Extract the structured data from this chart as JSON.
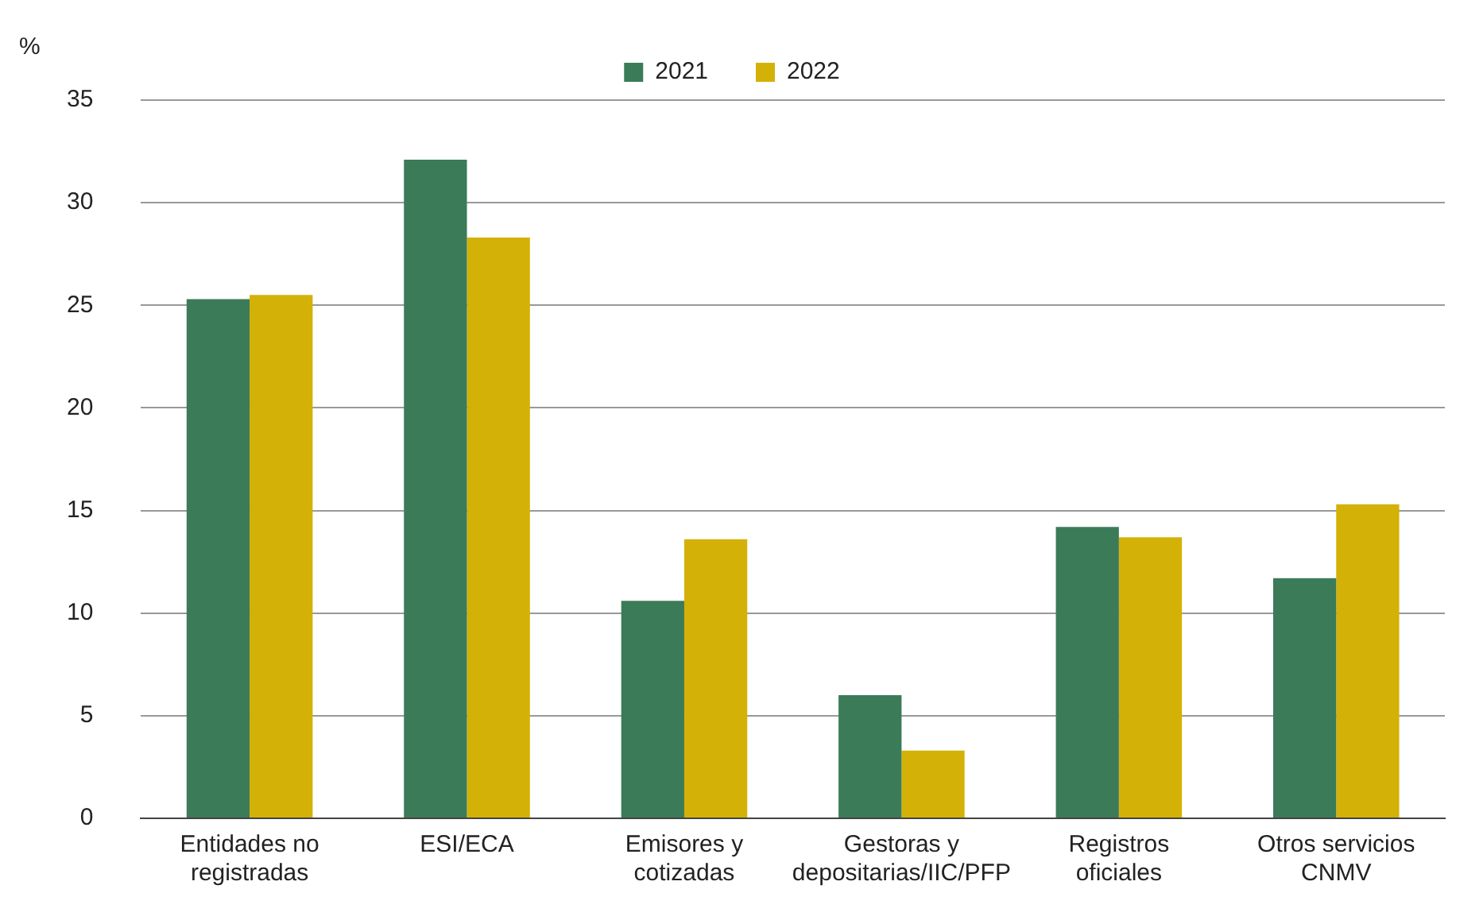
{
  "chart_data": {
    "type": "bar",
    "ylabel": "%",
    "categories": [
      "Entidades no registradas",
      "ESI/ECA",
      "Emisores y cotizadas",
      "Gestoras y depositarias/IIC/PFP",
      "Registros oficiales",
      "Otros servicios CNMV"
    ],
    "series": [
      {
        "name": "2021",
        "color": "#3c7b58",
        "values": [
          25.3,
          32.1,
          10.6,
          6.0,
          14.2,
          11.7
        ]
      },
      {
        "name": "2022",
        "color": "#d4b106",
        "values": [
          25.5,
          28.3,
          13.6,
          3.3,
          13.7,
          15.3
        ]
      }
    ],
    "ylim": [
      0,
      35
    ],
    "yticks": [
      0,
      5,
      10,
      15,
      20,
      25,
      30,
      35
    ],
    "grid": "y",
    "legend": "top"
  }
}
